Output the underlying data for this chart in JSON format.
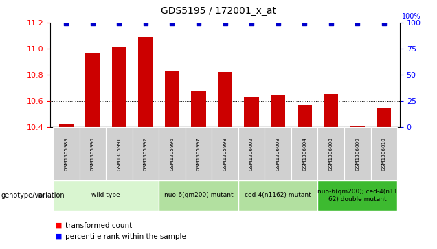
{
  "title": "GDS5195 / 172001_x_at",
  "samples": [
    "GSM1305989",
    "GSM1305990",
    "GSM1305991",
    "GSM1305992",
    "GSM1305996",
    "GSM1305997",
    "GSM1305998",
    "GSM1306002",
    "GSM1306003",
    "GSM1306004",
    "GSM1306008",
    "GSM1306009",
    "GSM1306010"
  ],
  "bar_values": [
    10.42,
    10.97,
    11.01,
    11.09,
    10.83,
    10.68,
    10.82,
    10.63,
    10.64,
    10.57,
    10.65,
    10.41,
    10.54
  ],
  "percentile_values": [
    99,
    99,
    99,
    99,
    99,
    99,
    99,
    99,
    99,
    99,
    99,
    99,
    99
  ],
  "bar_color": "#cc0000",
  "dot_color": "#0000cc",
  "ylim_left": [
    10.4,
    11.2
  ],
  "ylim_right": [
    0,
    100
  ],
  "yticks_left": [
    10.4,
    10.6,
    10.8,
    11.0,
    11.2
  ],
  "yticks_right": [
    0,
    25,
    50,
    75,
    100
  ],
  "groups": [
    {
      "label": "wild type",
      "start": 0,
      "end": 3,
      "color": "#d9f5d0"
    },
    {
      "label": "nuo-6(qm200) mutant",
      "start": 4,
      "end": 6,
      "color": "#b2e0a0"
    },
    {
      "label": "ced-4(n1162) mutant",
      "start": 7,
      "end": 9,
      "color": "#b2e0a0"
    },
    {
      "label": "nuo-6(qm200); ced-4(n11\n62) double mutant",
      "start": 10,
      "end": 12,
      "color": "#3dba30"
    }
  ],
  "group_label": "genotype/variation",
  "legend_bar_label": "transformed count",
  "legend_dot_label": "percentile rank within the sample",
  "background_color": "#ffffff",
  "plot_bg_color": "#ffffff",
  "sample_box_color": "#d0d0d0"
}
